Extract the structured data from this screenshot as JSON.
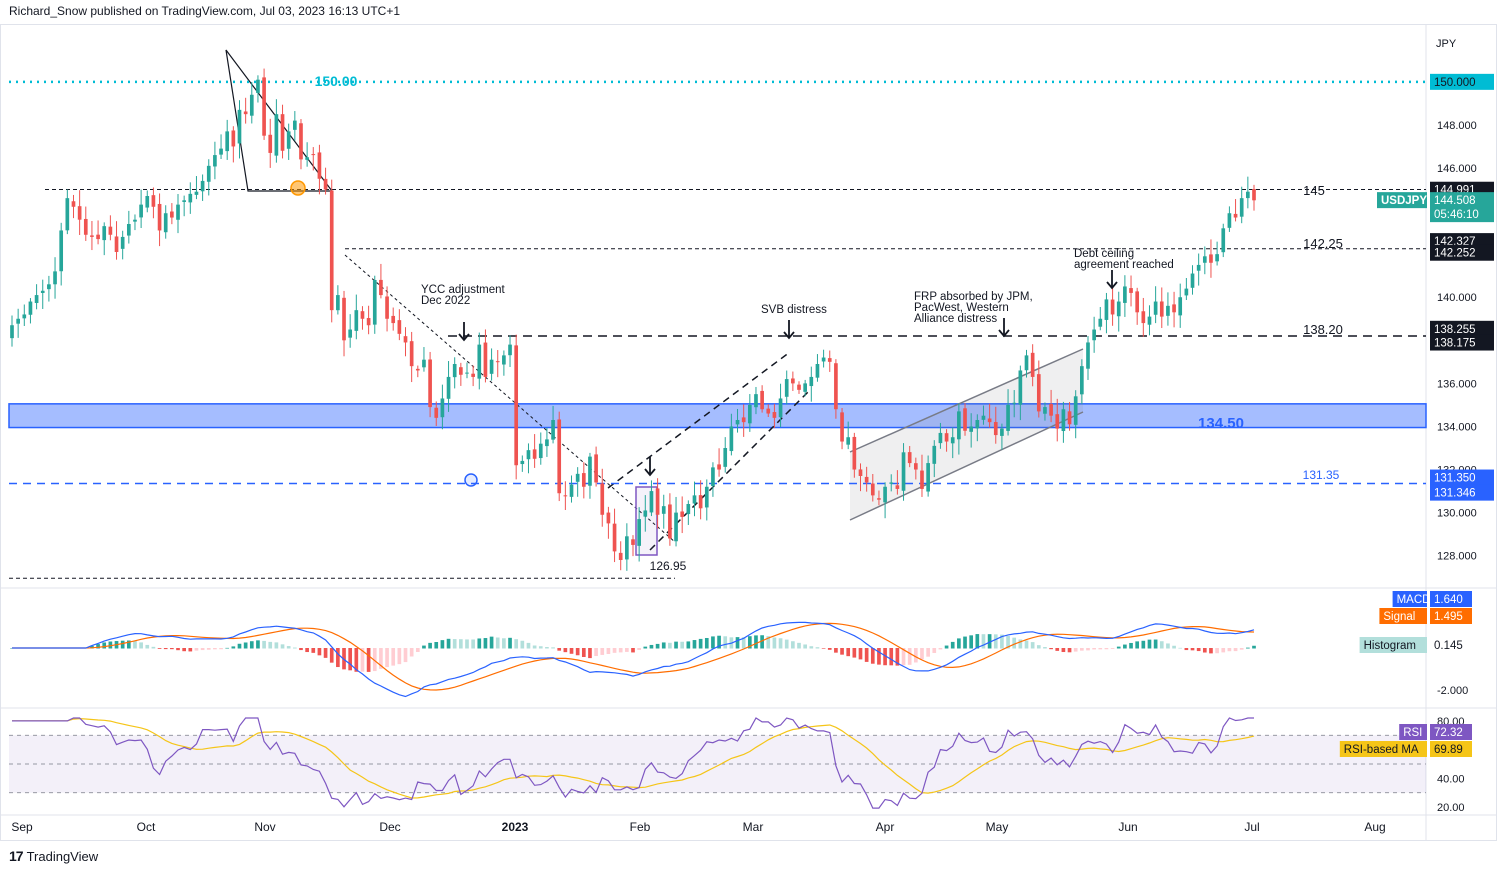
{
  "header": {
    "text": "Richard_Snow published on TradingView.com, Jul 03, 2023 16:13 UTC+1"
  },
  "footer": {
    "logo": "17",
    "brand": "TradingView"
  },
  "colors": {
    "up": "#26a69a",
    "down": "#ef5350",
    "macd": "#2962ff",
    "signal": "#ff6d00",
    "rsi": "#7e57c2",
    "rsi_ma": "#f5c518",
    "teal_level": "#00bcd4",
    "blue_zone": "#2962ff"
  },
  "chart_data": [
    {
      "type": "candlestick",
      "symbol": "USDJPY",
      "currency": "JPY",
      "x_ticks": [
        "Sep",
        "Oct",
        "Nov",
        "Dec",
        "2023",
        "Feb",
        "Mar",
        "Apr",
        "May",
        "Jun",
        "Jul",
        "Aug"
      ],
      "y_ticks": [
        "128.000",
        "130.000",
        "132.000",
        "134.000",
        "136.000",
        "138.000",
        "140.000",
        "142.000",
        "144.000",
        "146.000",
        "148.000",
        "150.000"
      ],
      "ylim": [
        126.5,
        152.5
      ],
      "price_tags": [
        {
          "label": "150.000",
          "value": 150.0,
          "kind": "level"
        },
        {
          "label": "144.991",
          "value": 144.991,
          "kind": "level"
        },
        {
          "label": "USDJPY",
          "value": 144.508,
          "kind": "symbol"
        },
        {
          "label": "144.508",
          "value": 144.508,
          "kind": "last"
        },
        {
          "label": "05:46:10",
          "value": 144.508,
          "kind": "countdown"
        },
        {
          "label": "142.327",
          "value": 142.327,
          "kind": "level"
        },
        {
          "label": "142.252",
          "value": 142.252,
          "kind": "level"
        },
        {
          "label": "138.255",
          "value": 138.255,
          "kind": "level"
        },
        {
          "label": "138.175",
          "value": 138.175,
          "kind": "level"
        },
        {
          "label": "131.350",
          "value": 131.35,
          "kind": "blue"
        },
        {
          "label": "131.346",
          "value": 131.346,
          "kind": "blue"
        }
      ],
      "levels": [
        {
          "label": "150.00",
          "value": 150.0
        },
        {
          "label": "145",
          "value": 145.0
        },
        {
          "label": "142.25",
          "value": 142.25
        },
        {
          "label": "138.20",
          "value": 138.2
        },
        {
          "label": "134.50",
          "value": 134.5
        },
        {
          "label": "131.35",
          "value": 131.35
        },
        {
          "label": "126.95",
          "value": 126.95
        }
      ],
      "zone": {
        "low": 133.95,
        "high": 135.05
      },
      "annotations": [
        {
          "text": [
            "YCC adjustment",
            "Dec 2022"
          ]
        },
        {
          "text": [
            "SVB distress"
          ]
        },
        {
          "text": [
            "FRP absorbed by JPM,",
            "PacWest, Western",
            "Alliance distress"
          ]
        },
        {
          "text": [
            "Debt ceiling",
            "agreement reached"
          ]
        }
      ],
      "closes": [
        138.7,
        139.0,
        139.2,
        139.8,
        140.1,
        140.3,
        140.6,
        141.2,
        143.1,
        144.6,
        144.2,
        143.6,
        142.9,
        142.8,
        142.7,
        143.3,
        142.9,
        142.1,
        142.8,
        143.4,
        143.6,
        144.3,
        144.7,
        144.2,
        143.1,
        143.9,
        143.7,
        144.3,
        144.5,
        144.8,
        144.9,
        145.4,
        146.1,
        146.6,
        146.9,
        147.7,
        147.0,
        148.7,
        148.5,
        149.4,
        150.1,
        147.5,
        146.7,
        148.5,
        146.8,
        147.7,
        148.2,
        146.4,
        146.5,
        146.6,
        145.5,
        145.0,
        139.4,
        140.1,
        138.0,
        138.5,
        139.4,
        139.0,
        138.7,
        140.8,
        140.1,
        139.0,
        138.8,
        138.3,
        137.9,
        136.8,
        136.6,
        137.1,
        134.9,
        134.4,
        135.3,
        136.3,
        136.9,
        136.4,
        136.5,
        136.3,
        137.8,
        136.3,
        137.1,
        137.0,
        137.3,
        137.8,
        132.2,
        132.4,
        132.9,
        132.5,
        133.2,
        133.4,
        134.3,
        130.9,
        130.8,
        131.3,
        131.8,
        131.2,
        132.6,
        131.4,
        129.9,
        129.5,
        128.2,
        127.8,
        128.9,
        128.5,
        129.7,
        130.1,
        131.0,
        129.9,
        130.3,
        128.8,
        130.0,
        129.8,
        130.4,
        130.8,
        130.2,
        131.2,
        132.1,
        132.0,
        133.0,
        134.0,
        134.3,
        134.2,
        135.0,
        135.5,
        134.8,
        134.6,
        134.4,
        135.3,
        136.2,
        136.0,
        135.7,
        136.0,
        136.3,
        136.9,
        137.2,
        137.0,
        134.8,
        133.3,
        133.5,
        132.0,
        131.7,
        131.4,
        130.8,
        130.6,
        131.2,
        131.4,
        131.1,
        132.8,
        132.3,
        132.0,
        131.1,
        132.3,
        133.1,
        133.7,
        133.3,
        133.5,
        134.7,
        133.8,
        134.0,
        134.3,
        134.5,
        134.2,
        133.6,
        133.9,
        135.0,
        135.1,
        136.6,
        137.3,
        136.3,
        134.7,
        134.9,
        134.5,
        133.9,
        134.8,
        134.1,
        135.4,
        136.8,
        137.9,
        138.5,
        139.0,
        139.9,
        139.2,
        139.8,
        140.5,
        140.2,
        139.3,
        138.8,
        139.1,
        139.8,
        139.1,
        139.6,
        139.3,
        140.0,
        140.4,
        141.1,
        141.5,
        141.9,
        141.6,
        142.0,
        143.2,
        143.9,
        143.7,
        144.6,
        144.9,
        144.5
      ]
    },
    {
      "type": "line",
      "name": "MACD",
      "series": [
        {
          "name": "MACD",
          "value": 1.64
        },
        {
          "name": "Signal",
          "value": 1.495
        },
        {
          "name": "Histogram",
          "value": 0.145
        }
      ],
      "y_ticks": [
        "-2.000"
      ]
    },
    {
      "type": "line",
      "name": "RSI",
      "series": [
        {
          "name": "RSI",
          "value": 72.32
        },
        {
          "name": "RSI-based MA",
          "value": 69.89
        }
      ],
      "y_ticks": [
        "80.00",
        "40.00",
        "20.00"
      ],
      "bands": [
        70,
        50,
        30
      ]
    }
  ]
}
